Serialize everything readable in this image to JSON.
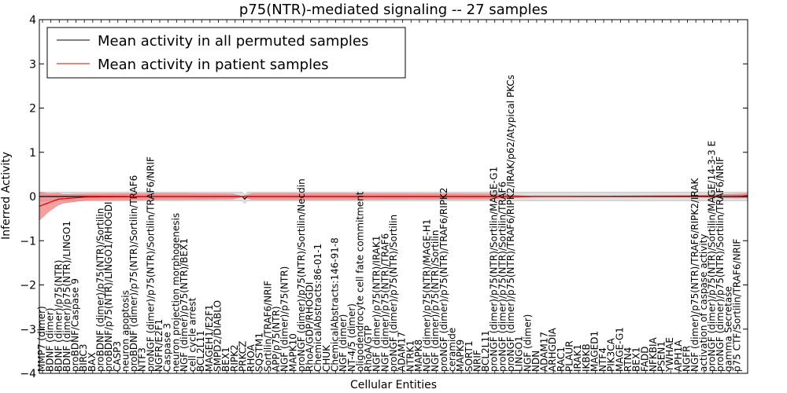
{
  "chart_data": {
    "type": "line",
    "title": "p75(NTR)-mediated signaling -- 27 samples",
    "xlabel": "Cellular Entities",
    "ylabel": "Inferred Activity",
    "ylim": [
      -4,
      4
    ],
    "yticks": [
      -4,
      -3,
      -2,
      -1,
      0,
      1,
      2,
      3,
      4
    ],
    "grid": false,
    "legend_position": "top-left",
    "series": [
      {
        "name": "Mean activity in all permuted samples",
        "color": "#000000",
        "band_color": "#c8c8c8",
        "mean_points": [
          [
            0,
            0
          ],
          [
            86,
            0
          ],
          [
            87,
            -0.06
          ],
          [
            88,
            0
          ],
          [
            300,
            0
          ]
        ],
        "band_points": [
          [
            0,
            0.1
          ],
          [
            300,
            0.1
          ]
        ]
      },
      {
        "name": "Mean activity in patient samples",
        "color": "#e00000",
        "band_color": "#f08080",
        "mean_points": [
          [
            0,
            -0.22
          ],
          [
            8,
            -0.06
          ],
          [
            20,
            -0.01
          ],
          [
            50,
            0.0
          ],
          [
            100,
            0.0
          ],
          [
            200,
            0.0
          ],
          [
            296,
            0.01
          ],
          [
            300,
            0.02
          ]
        ],
        "band_points": [
          [
            0,
            0.32
          ],
          [
            4,
            0.2
          ],
          [
            10,
            0.1
          ],
          [
            20,
            0.07
          ],
          [
            60,
            0.07
          ],
          [
            82,
            0.06
          ],
          [
            86,
            0.0
          ],
          [
            90,
            0.07
          ],
          [
            120,
            0.07
          ],
          [
            190,
            0.06
          ],
          [
            210,
            0.0
          ],
          [
            280,
            0.02
          ],
          [
            290,
            0.04
          ],
          [
            300,
            0.05
          ]
        ]
      }
    ],
    "categories": [
      "MMP7 (dimer)",
      "BDNF (dimer)",
      "BDNF (dimer)/p75(NTR)",
      "BDNF (dimer)/p75(NTR)/LINGO1",
      "proBDNF/Caspase 9",
      "BIRC3",
      "BAX",
      "proBDNF (dimer)/p75(NTR)/Sortilin",
      "proBDNF/p75(NTR)/LINGO1/RHOGDI",
      "CASP3",
      "neuron apoptosis",
      "proBDNF (dimer)/p75(NTR)/Sortilin/TRAF6",
      "NTF3",
      "proNGF (dimer)/p75(NTR)/Sortilin/TRAF6/NRIF",
      "NGFR/E2F1",
      "Caspase 3",
      "neuron projection morphogenesis",
      "NGF (dimer)/p75(NTR)/BEX1",
      "cell cycle arrest",
      "BCL2L11",
      "MAGEH1/E2F1",
      "SMPD2/DIABLO",
      "BEX1",
      "RIPK2",
      "PRKCZ",
      "RHOA",
      "SQSTM1",
      "Sortilin/TRAF6/NRIF",
      "APP/p75(NTR)",
      "NGF (dimer)/p75(NTR)",
      "MAPK10",
      "proNGF (dimer)/p75(NTR)/Sortilin/Necdin",
      "RhoA/GDP/RHOGDI",
      "ChemicalAbstracts:86-01-1",
      "CHUK",
      "ChemicalAbstracts:146-91-8",
      "NGF (dimer)",
      "NT-4/5 (dimer)",
      "oligodendrocyte cell fate commitment",
      "RhoA/GTP",
      "NGF (dimer)/p75(NTR)/IRAK1",
      "NGF (dimer)/p75(NTR)/TRAF6",
      "proNGF (dimer)/p75(NTR)/Sortilin",
      "ADAM17",
      "NTRK1",
      "MAPK8",
      "NGF (dimer)/p75(NTR)/MAGE-H1",
      "NGF (dimer)/p75(NTR)/Sortilin",
      "proNGF (dimer)/p75(NTR)/TRAF6/RIPK2",
      "ceramide",
      "MAPK9",
      "SORT1",
      "NRIF",
      "BCL2L11",
      "proNGF (dimer)/p75(NTR)/Sortilin/MAGE-G1",
      "proNGF (dimer)/p75(NTR)/Sortilin/TRAF6",
      "proNGF (dimer)/p75(NTR)/TRAF6/RIPK2/IRAK/p62/Atypical PKCs",
      "LINGO1",
      "NGF (dimer)",
      "NDN",
      "ADAM17",
      "ARHGDIA",
      "RAC1",
      "PLAUR",
      "IRAK1",
      "IKBKB",
      "MAGED1",
      "NTF4",
      "PIK3CA",
      "MAGE-G1",
      "RTN4",
      "BEX1",
      "FADD",
      "NFKBIA",
      "PSEN1",
      "YWHAE",
      "APH1A",
      "NGFR",
      "NGF (dimer)/p75(NTR)/TRAF6/RIPK2/IRAK",
      "activation of caspase activity",
      "proNGF (dimer)/p75(NTR)/Sortilin/MAGE/14-3-3 E",
      "proNGF (dimer)/p75(NTR)/Sortilin/TRAF6/NRIF",
      "gamma Secretase",
      "p75 CTF/Sortilin/TRAF6/NRIF"
    ]
  }
}
